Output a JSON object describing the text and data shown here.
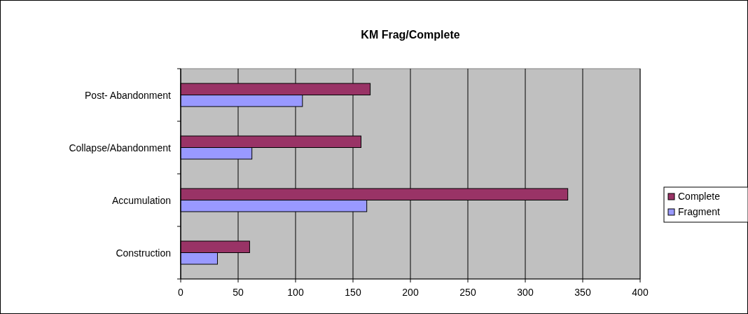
{
  "chart_data": {
    "type": "bar",
    "orientation": "horizontal",
    "title": "KM Frag/Complete",
    "categories": [
      "Post- Abandonment",
      "Collapse/Abandonment",
      "Accumulation",
      "Construction"
    ],
    "series": [
      {
        "name": "Complete",
        "color": "#993366",
        "values": [
          165,
          157,
          337,
          60
        ]
      },
      {
        "name": "Fragment",
        "color": "#9999ff",
        "values": [
          106,
          62,
          162,
          32
        ]
      }
    ],
    "xlim": [
      0,
      400
    ],
    "xticks": [
      0,
      50,
      100,
      150,
      200,
      250,
      300,
      350,
      400
    ],
    "grid": "x",
    "legend": "right"
  }
}
